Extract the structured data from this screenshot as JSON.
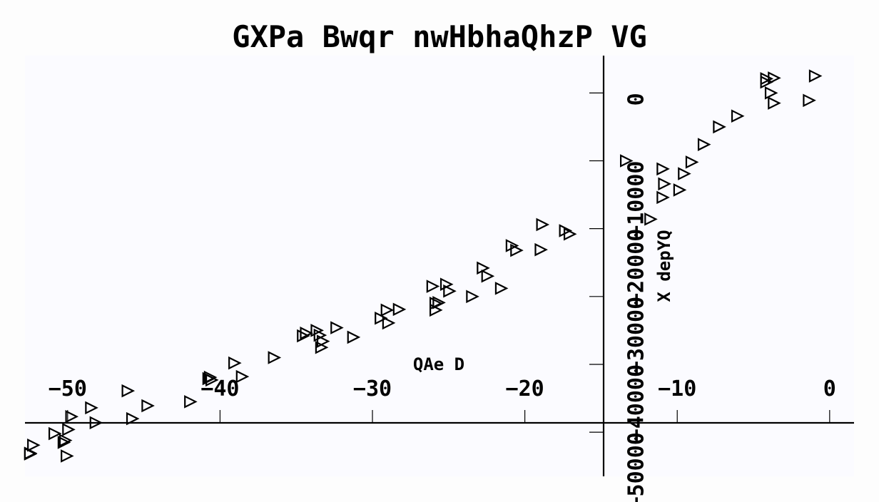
{
  "chart_data": {
    "type": "scatter",
    "title": "GXPa  Bwqr nwHbhaQhzP VG",
    "xlabel": "QAe D",
    "ylabel": "X depYQ",
    "xlim": [
      -52.8,
      1.6
    ],
    "ylim": [
      -56500,
      5500
    ],
    "grid": false,
    "marker": "triangle-right",
    "x_ticks": [
      -50,
      -40,
      -30,
      -20,
      -10,
      0
    ],
    "x_tick_labels": [
      "−50",
      "−40",
      "−30",
      "−20",
      "−10",
      "0"
    ],
    "y_ticks": [
      0,
      -10000,
      -20000,
      -30000,
      -40000,
      -50000
    ],
    "y_tick_labels": [
      "0",
      "−10000",
      "−20000",
      "−30000",
      "−40000",
      "−50000"
    ],
    "series": [
      {
        "x": [
          -52.5,
          -52.5,
          -52.3,
          -50.9,
          -50.3,
          -50.2,
          -50.1,
          -50.0,
          -49.8,
          -48.5,
          -48.2,
          -46.1,
          -45.8,
          -44.8,
          -42.0,
          -40.8,
          -40.7,
          -40.6,
          -39.1,
          -38.6,
          -36.5,
          -34.6,
          -34.4,
          -33.7,
          -33.5,
          -33.4,
          -33.3,
          -32.4,
          -31.3,
          -29.5,
          -29.1,
          -29.0,
          -28.3,
          -26.1,
          -25.9,
          -25.9,
          -25.7,
          -25.2,
          -25.0,
          -23.5,
          -22.8,
          -22.5,
          -21.6,
          -20.9,
          -20.6,
          -19.0,
          -18.9,
          -17.4,
          -17.1,
          -13.4,
          -11.8,
          -11.0,
          -11.0,
          -10.9,
          -9.9,
          -9.6,
          -9.1,
          -8.3,
          -7.3,
          -6.1,
          -4.2,
          -4.2,
          -3.9,
          -3.7,
          -3.7,
          -1.4,
          -1.0
        ],
        "y": [
          -53200,
          -53100,
          -51900,
          -50200,
          -51500,
          -51200,
          -53500,
          -49600,
          -47700,
          -46400,
          -48600,
          -43900,
          -48000,
          -46100,
          -45500,
          -42100,
          -41900,
          -42300,
          -39800,
          -41800,
          -39000,
          -35800,
          -35400,
          -35000,
          -35700,
          -37500,
          -36600,
          -34600,
          -36000,
          -33200,
          -32000,
          -33900,
          -31900,
          -28500,
          -32000,
          -31000,
          -30900,
          -28200,
          -29200,
          -30000,
          -25800,
          -27000,
          -28800,
          -22500,
          -23200,
          -23100,
          -19400,
          -20300,
          -20800,
          -10000,
          -18600,
          -15400,
          -11200,
          -13400,
          -14300,
          -11900,
          -10200,
          -7600,
          -5000,
          -3400,
          2100,
          1600,
          0,
          2200,
          -1500,
          -1100,
          2500
        ]
      }
    ]
  }
}
